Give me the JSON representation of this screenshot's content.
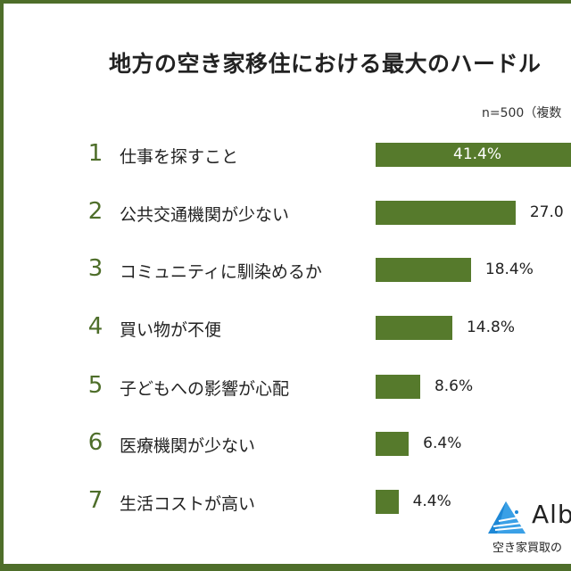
{
  "chart_data": {
    "type": "bar",
    "orientation": "horizontal",
    "title": "地方の空き家移住における最大のハードル",
    "note": "n=500（複数",
    "categories": [
      "仕事を探すこと",
      "公共交通機関が少ない",
      "コミュニティに馴染めるか",
      "買い物が不便",
      "子どもへの影響が心配",
      "医療機関が少ない",
      "生活コストが高い"
    ],
    "ranks": [
      "1",
      "2",
      "3",
      "4",
      "5",
      "6",
      "7"
    ],
    "values": [
      41.4,
      27.0,
      18.4,
      14.8,
      8.6,
      6.4,
      4.4
    ],
    "value_labels": [
      "41.4%",
      "27.0",
      "18.4%",
      "14.8%",
      "8.6%",
      "6.4%",
      "4.4%"
    ],
    "unit": "%",
    "bar_color": "#567a2c",
    "accent_color": "#4e6e2a"
  },
  "logo": {
    "text": "Alb",
    "subtitle": "空き家買取の"
  }
}
